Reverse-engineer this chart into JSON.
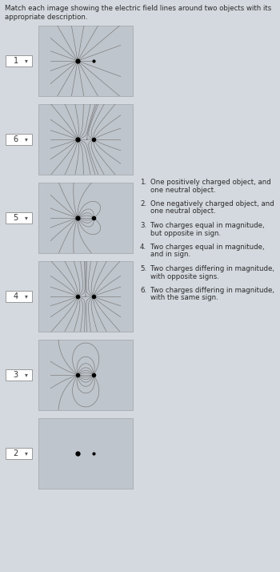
{
  "background_color": "#d4d9df",
  "panel_bg": "#bfc5cc",
  "title_line1": "Match each image showing the electric field lines around two objects with its",
  "title_line2": "appropriate description.",
  "dropdown_labels": [
    "1",
    "6",
    "5",
    "4",
    "3",
    "2"
  ],
  "field_types": [
    "one_pos_one_neutral",
    "two_same_sign_unequal",
    "dipole_unequal",
    "two_same_sign_equal",
    "classic_dipole",
    "one_neg_one_neutral"
  ],
  "desc_texts": [
    [
      "1.",
      "One positively charged object, and",
      "one neutral object."
    ],
    [
      "2.",
      "One negatively charged object, and",
      "one neutral object."
    ],
    [
      "3.",
      "Two charges equal in magnitude,",
      "but opposite in sign."
    ],
    [
      "4.",
      "Two charges equal in magnitude,",
      "and in sign."
    ],
    [
      "5.",
      "Two charges differing in magnitude,",
      "with opposite signs."
    ],
    [
      "6.",
      "Two charges differing in magnitude,",
      "with the same sign."
    ]
  ],
  "fig_w": 3.5,
  "fig_h": 7.14,
  "dpi": 100
}
